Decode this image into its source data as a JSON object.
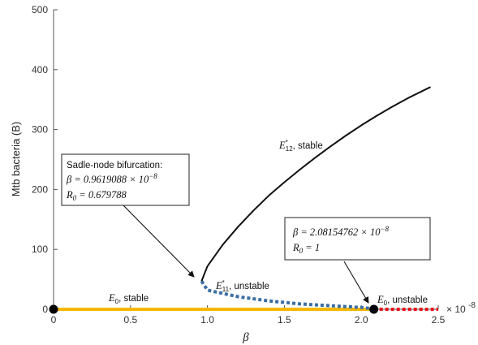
{
  "chart_data": {
    "type": "line",
    "xlabel": "β",
    "ylabel": "Mtb bacteria (B)",
    "x_multiplier_label": "× 10",
    "x_multiplier_exponent": "-8",
    "xlim": [
      0,
      2.5
    ],
    "ylim": [
      0,
      500
    ],
    "xticks": [
      0,
      0.5,
      1,
      1.5,
      2,
      2.5
    ],
    "xtick_labels": [
      "0",
      "0.5",
      "1.0",
      "1.5",
      "2.0",
      "2.5"
    ],
    "yticks": [
      0,
      100,
      200,
      300,
      400,
      500
    ],
    "ytick_labels": [
      "0",
      "100",
      "200",
      "300",
      "400",
      "500"
    ],
    "grid": false,
    "series": [
      {
        "key": "e0_stable",
        "color": "#f5b800",
        "style": "solid",
        "x": [
          0,
          2.0815
        ],
        "y": [
          0,
          0
        ]
      },
      {
        "key": "e0_unstable",
        "color": "#e8151b",
        "style": "dotted",
        "x": [
          2.0815,
          2.5
        ],
        "y": [
          0,
          0
        ]
      },
      {
        "key": "e11_unstable",
        "color": "#3a6ea5",
        "style": "dotted",
        "x": [
          0.9619,
          1.0,
          1.2,
          1.4,
          1.6,
          1.8,
          2.0,
          2.0815
        ],
        "y": [
          47,
          32,
          21,
          14,
          9,
          6,
          3,
          1
        ]
      },
      {
        "key": "e12_stable",
        "color": "#111111",
        "style": "solid",
        "x": [
          0.9619,
          1.0,
          1.1,
          1.2,
          1.3,
          1.4,
          1.5,
          1.6,
          1.7,
          1.8,
          1.9,
          2.0,
          2.1,
          2.2,
          2.3,
          2.45
        ],
        "y": [
          47,
          72,
          108,
          138,
          165,
          190,
          212,
          233,
          253,
          272,
          290,
          307,
          323,
          338,
          352,
          371
        ]
      }
    ],
    "points": [
      {
        "key": "origin",
        "x": 0,
        "y": 0,
        "color": "#000000"
      },
      {
        "key": "transcritical",
        "x": 2.0815,
        "y": 0,
        "color": "#000000"
      }
    ],
    "curve_labels": {
      "e12_stable": {
        "symbol": "E",
        "sup": "*",
        "sub": "12",
        "text": ", stable"
      },
      "e11_unstable": {
        "symbol": "E",
        "sup": "*",
        "sub": "11",
        "text": ", unstable"
      },
      "e0_stable": {
        "symbol": "E",
        "sub": "0",
        "text": ", stable"
      },
      "e0_unstable": {
        "symbol": "E",
        "sub": "0",
        "text": ", unstable"
      }
    },
    "annotations": [
      {
        "key": "saddle_node",
        "title": "Sadle-node bifurcation:",
        "beta_line": "β = 0.9619088 × 10",
        "beta_exp": "−8",
        "r0_symbol": "R",
        "r0_sub": "0",
        "r0_text": " = 0.679788",
        "arrow_to": [
          0.9619,
          47
        ]
      },
      {
        "key": "transcritical",
        "beta_line": "β = 2.08154762 × 10",
        "beta_exp": "−8",
        "r0_symbol": "R",
        "r0_sub": "0",
        "r0_text": " = 1",
        "arrow_to": [
          2.0815,
          0
        ]
      }
    ]
  }
}
